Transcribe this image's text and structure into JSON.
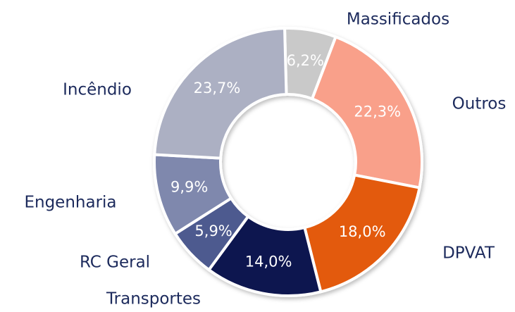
{
  "chart_data": {
    "type": "donut",
    "categories": [
      "Massificados",
      "Outros",
      "DPVAT",
      "Transportes",
      "RC Geral",
      "Engenharia",
      "Incêndio"
    ],
    "values": [
      6.2,
      22.3,
      18.0,
      14.0,
      5.9,
      9.9,
      23.7
    ],
    "value_labels": [
      "6,2%",
      "22,3%",
      "18,0%",
      "14,0%",
      "5,9%",
      "9,9%",
      "23,7%"
    ],
    "colors": [
      "#c9c9c9",
      "#f9a08a",
      "#e35a0a",
      "#0f1250",
      "#4e5a8f",
      "#7f88ad",
      "#acb0c3"
    ]
  }
}
